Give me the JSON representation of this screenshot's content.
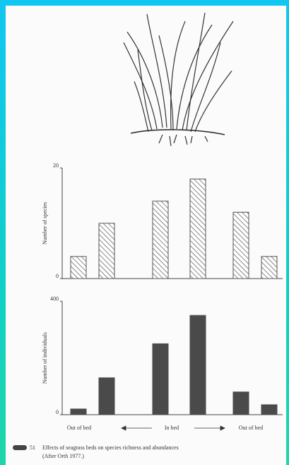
{
  "chart_data": [
    {
      "type": "bar",
      "ylabel": "Number of species",
      "categories": [
        null,
        null,
        null,
        null,
        null,
        null
      ],
      "values": [
        4,
        10,
        14,
        18,
        12,
        4
      ],
      "color": "#555555",
      "hatch": true,
      "ylim": [
        0,
        20
      ],
      "yticks": [
        0,
        20
      ]
    },
    {
      "type": "bar",
      "ylabel": "Number of individuals",
      "categories": [
        null,
        null,
        null,
        null,
        null,
        null
      ],
      "values": [
        20,
        130,
        250,
        350,
        80,
        35
      ],
      "color": "#4a4a4a",
      "hatch": false,
      "ylim": [
        0,
        400
      ],
      "yticks": [
        0,
        400
      ],
      "annotations": [
        "Out of bed",
        "In bed",
        "Out of bed"
      ]
    }
  ],
  "caption": {
    "number": "51",
    "text": "Effects of seagrass beds on species richness and abundances",
    "source": "(After Orth 1977.)"
  }
}
